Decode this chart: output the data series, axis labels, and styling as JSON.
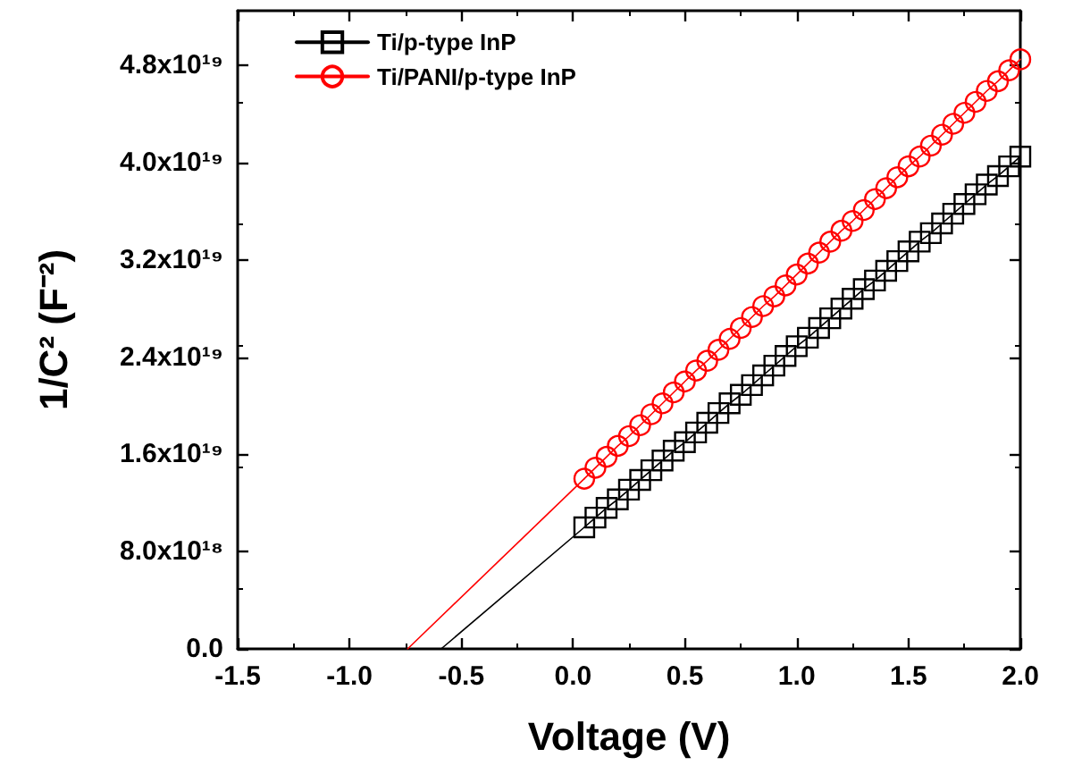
{
  "chart_data": {
    "type": "line",
    "xlabel": "Voltage (V)",
    "ylabel": "1/C² (F⁻²)",
    "xlim": [
      -1.5,
      2.0
    ],
    "xticks": [
      -1.5,
      {
        "value": -1,
        "label": "-1.0"
      },
      -0.5,
      {
        "value": 0,
        "label": "0.0"
      },
      0.5,
      {
        "value": 1,
        "label": "1.0"
      },
      1.5,
      {
        "value": 2,
        "label": "2.0"
      }
    ],
    "ylim": [
      0,
      5.25e+19
    ],
    "yticks": [
      {
        "value": 0,
        "label": "0.0"
      },
      {
        "value": 8e+18,
        "label": "8.0x10¹⁸"
      },
      {
        "value": 1.6e+19,
        "label": "1.6x10¹⁹"
      },
      {
        "value": 2.4e+19,
        "label": "2.4x10¹⁹"
      },
      {
        "value": 3.2e+19,
        "label": "3.2x10¹⁹"
      },
      {
        "value": 4e+19,
        "label": "4.0x10¹⁹"
      },
      {
        "value": 4.8e+19,
        "label": "4.8x10¹⁹"
      }
    ],
    "grid": false,
    "legend": "top left",
    "series": [
      {
        "name": "Ti/p-type InP",
        "color": "#000000",
        "marker": "square",
        "x": [
          0.05,
          0.1,
          0.15,
          0.2,
          0.25,
          0.3,
          0.35,
          0.4,
          0.45,
          0.5,
          0.55,
          0.6,
          0.65,
          0.7,
          0.75,
          0.8,
          0.85,
          0.9,
          0.95,
          1.0,
          1.05,
          1.1,
          1.15,
          1.2,
          1.25,
          1.3,
          1.35,
          1.4,
          1.45,
          1.5,
          1.55,
          1.6,
          1.65,
          1.7,
          1.75,
          1.8,
          1.85,
          1.9,
          1.95,
          2.0
        ],
        "values": [
          1e+19,
          1.08e+19,
          1.16e+19,
          1.23e+19,
          1.31e+19,
          1.39e+19,
          1.47e+19,
          1.55e+19,
          1.63e+19,
          1.7e+19,
          1.78e+19,
          1.86e+19,
          1.94e+19,
          2.02e+19,
          2.09e+19,
          2.17e+19,
          2.25e+19,
          2.33e+19,
          2.41e+19,
          2.49e+19,
          2.56e+19,
          2.64e+19,
          2.72e+19,
          2.8e+19,
          2.88e+19,
          2.96e+19,
          3.03e+19,
          3.11e+19,
          3.19e+19,
          3.27e+19,
          3.35e+19,
          3.42e+19,
          3.5e+19,
          3.58e+19,
          3.66e+19,
          3.74e+19,
          3.82e+19,
          3.89e+19,
          3.97e+19,
          4.05e+19
        ]
      },
      {
        "name": "Ti/PANI/p-type InP",
        "color": "#ff0000",
        "marker": "circle",
        "x": [
          0.05,
          0.1,
          0.15,
          0.2,
          0.25,
          0.3,
          0.35,
          0.4,
          0.45,
          0.5,
          0.55,
          0.6,
          0.65,
          0.7,
          0.75,
          0.8,
          0.85,
          0.9,
          0.95,
          1.0,
          1.05,
          1.1,
          1.15,
          1.2,
          1.25,
          1.3,
          1.35,
          1.4,
          1.45,
          1.5,
          1.55,
          1.6,
          1.65,
          1.7,
          1.75,
          1.8,
          1.85,
          1.9,
          1.95,
          2.0
        ],
        "values": [
          1.4e+19,
          1.49e+19,
          1.58e+19,
          1.67e+19,
          1.75e+19,
          1.84e+19,
          1.93e+19,
          2.02e+19,
          2.11e+19,
          2.2e+19,
          2.29e+19,
          2.37e+19,
          2.46e+19,
          2.55e+19,
          2.64e+19,
          2.73e+19,
          2.82e+19,
          2.9e+19,
          2.99e+19,
          3.08e+19,
          3.17e+19,
          3.26e+19,
          3.35e+19,
          3.44e+19,
          3.52e+19,
          3.61e+19,
          3.7e+19,
          3.79e+19,
          3.88e+19,
          3.97e+19,
          4.05e+19,
          4.14e+19,
          4.23e+19,
          4.32e+19,
          4.41e+19,
          4.5e+19,
          4.59e+19,
          4.67e+19,
          4.76e+19,
          4.85e+19
        ]
      },
      {
        "color": "#000000",
        "marker": "none",
        "x": [
          -0.59,
          0.05
        ],
        "values": [
          0,
          1e+19
        ]
      },
      {
        "color": "#ff0000",
        "marker": "none",
        "x": [
          -0.74,
          0.05
        ],
        "values": [
          0,
          1.4e+19
        ]
      }
    ]
  }
}
